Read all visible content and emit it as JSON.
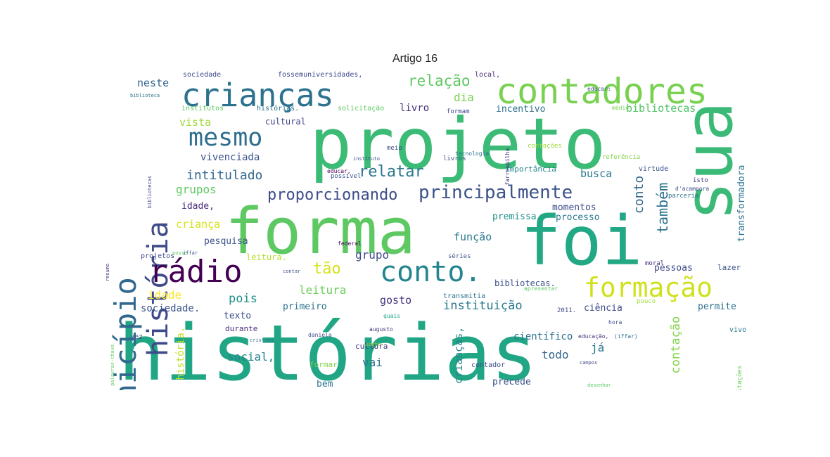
{
  "title": "Artigo 16",
  "words": [
    {
      "t": "histórias",
      "c": "#21a685"
    },
    {
      "t": "projeto",
      "c": "#3bbb75"
    },
    {
      "t": "forma",
      "c": "#5ec962"
    },
    {
      "t": "sua",
      "c": "#3aba76"
    },
    {
      "t": "foi",
      "c": "#22a884"
    },
    {
      "t": "crianças",
      "c": "#2c728e"
    },
    {
      "t": "contadores",
      "c": "#7ad151"
    },
    {
      "t": "município",
      "c": "#31688e"
    },
    {
      "t": "história",
      "c": "#3e4a89"
    },
    {
      "t": "mesmo",
      "c": "#2e6f8e"
    },
    {
      "t": "rádio",
      "c": "#440154"
    },
    {
      "t": "conto.",
      "c": "#25858e"
    },
    {
      "t": "formação",
      "c": "#d0e11c"
    },
    {
      "t": "principalmente",
      "c": "#3b528b"
    },
    {
      "t": "proporcionando",
      "c": "#3e4c8a"
    },
    {
      "t": "relação",
      "c": "#5ec962"
    },
    {
      "t": "relatar",
      "c": "#2a788e"
    },
    {
      "t": "intitulado",
      "c": "#31688e"
    },
    {
      "t": "neste",
      "c": "#33638d"
    },
    {
      "t": "dia",
      "c": "#7ad151"
    },
    {
      "t": "livro",
      "c": "#46327e"
    },
    {
      "t": "bibliotecas",
      "c": "#52c569"
    },
    {
      "t": "incentivo",
      "c": "#2d708e"
    },
    {
      "t": "vista",
      "c": "#a0da39"
    },
    {
      "t": "cultural",
      "c": "#414487"
    },
    {
      "t": "vivenciada",
      "c": "#3b528b"
    },
    {
      "t": "busca",
      "c": "#2a788e"
    },
    {
      "t": "grupos",
      "c": "#5ec962"
    },
    {
      "t": "idade,",
      "c": "#472c7a"
    },
    {
      "t": "criança",
      "c": "#d8e219"
    },
    {
      "t": "pesquisa",
      "c": "#3b528b"
    },
    {
      "t": "leitura.",
      "c": "#b5de2b"
    },
    {
      "t": "tão",
      "c": "#d8e219"
    },
    {
      "t": "grupo",
      "c": "#3e4a89"
    },
    {
      "t": "função",
      "c": "#2a788e"
    },
    {
      "t": "premissa",
      "c": "#21918c"
    },
    {
      "t": "momentos",
      "c": "#3e4c8a"
    },
    {
      "t": "processo",
      "c": "#2a788e"
    },
    {
      "t": "também",
      "c": "#2c728e"
    },
    {
      "t": "conto",
      "c": "#31688e"
    },
    {
      "t": "transformadora",
      "c": "#2c728e"
    },
    {
      "t": "pessoas",
      "c": "#3e4a89"
    },
    {
      "t": "idade",
      "c": "#fde725"
    },
    {
      "t": "pois",
      "c": "#21918c"
    },
    {
      "t": "leitura",
      "c": "#6ccd5a"
    },
    {
      "t": "sociedade.",
      "c": "#3b528b"
    },
    {
      "t": "primeiro",
      "c": "#2c728e"
    },
    {
      "t": "gosto",
      "c": "#46327e"
    },
    {
      "t": "instituição",
      "c": "#2a788e"
    },
    {
      "t": "bibliotecas.",
      "c": "#3b528b"
    },
    {
      "t": "ciência",
      "c": "#3e4a89"
    },
    {
      "t": "permite",
      "c": "#2d708e"
    },
    {
      "t": "contação",
      "c": "#84d44b"
    },
    {
      "t": "texto",
      "c": "#3b528b"
    },
    {
      "t": "durante",
      "c": "#472c7a"
    },
    {
      "t": "científico",
      "c": "#2c728e"
    },
    {
      "t": "todo",
      "c": "#33638d"
    },
    {
      "t": "já",
      "c": "#2a788e"
    },
    {
      "t": "social,",
      "c": "#25858e"
    },
    {
      "t": "vai",
      "c": "#2c728e"
    },
    {
      "t": "crianças,",
      "c": "#26828e"
    },
    {
      "t": "bem",
      "c": "#2a788e"
    },
    {
      "t": "precede",
      "c": "#3b528b"
    },
    {
      "t": "cultura",
      "c": "#46327e"
    },
    {
      "t": "formar",
      "c": "#84d44b"
    },
    {
      "t": "contador",
      "c": "#3e4a89"
    },
    {
      "t": "história.",
      "c": "#c2df23"
    },
    {
      "t": "lazer",
      "c": "#3b528b"
    },
    {
      "t": "sociedade",
      "c": "#3e4c8a"
    },
    {
      "t": "fossemuniversidades,",
      "c": "#3e4a89"
    },
    {
      "t": "local,",
      "c": "#472c7a"
    },
    {
      "t": "institutos",
      "c": "#5ec962"
    },
    {
      "t": "histórias.",
      "c": "#2c728e"
    },
    {
      "t": "solicitação",
      "c": "#5ec962"
    },
    {
      "t": "formam",
      "c": "#3e4a89"
    },
    {
      "t": "livros",
      "c": "#3b528b"
    },
    {
      "t": "meio",
      "c": "#3e4a89"
    },
    {
      "t": "possível",
      "c": "#3b528b"
    },
    {
      "t": "importância",
      "c": "#25858e"
    },
    {
      "t": "contações",
      "c": "#a0da39"
    },
    {
      "t": "referência",
      "c": "#84d44b"
    },
    {
      "t": "virtude",
      "c": "#3b528b"
    },
    {
      "t": "isto",
      "c": "#46327e"
    },
    {
      "t": "parceria",
      "c": "#2d708e"
    },
    {
      "t": "transmitia",
      "c": "#2c728e"
    },
    {
      "t": "séries",
      "c": "#3b528b"
    },
    {
      "t": "moral",
      "c": "#472c7a"
    },
    {
      "t": "projetos",
      "c": "#3e4c8a"
    },
    {
      "t": "pouco",
      "c": "#a0da39"
    },
    {
      "t": "2011.",
      "c": "#3e4a89"
    },
    {
      "t": "vez",
      "c": "#3b528b"
    },
    {
      "t": "vivo,",
      "c": "#2a788e"
    },
    {
      "t": "solicitações",
      "c": "#6ccd5a"
    },
    {
      "t": "educar,",
      "c": "#440154"
    },
    {
      "t": "federal",
      "c": "#440154"
    },
    {
      "t": "tecnologia",
      "c": "#2c728e"
    },
    {
      "t": "educação,",
      "c": "#46327e"
    },
    {
      "t": "(iffar)",
      "c": "#2d708e"
    },
    {
      "t": "quais",
      "c": "#21a685"
    },
    {
      "t": "daniela",
      "c": "#3b528b"
    },
    {
      "t": "augusto",
      "c": "#46327e"
    },
    {
      "t": "santo",
      "c": "#a0da39"
    },
    {
      "t": "cristina",
      "c": "#2c728e"
    },
    {
      "t": "campos",
      "c": "#3e4a89"
    },
    {
      "t": "desenhar",
      "c": "#5ec962"
    },
    {
      "t": "apresentar",
      "c": "#5ec962"
    },
    {
      "t": "hora",
      "c": "#3b528b"
    },
    {
      "t": "iffar",
      "c": "#3b528b"
    },
    {
      "t": "farroupilha",
      "c": "#46327e"
    },
    {
      "t": "d'acampora",
      "c": "#3e4a89"
    },
    {
      "t": "biblioteca",
      "c": "#2c728e"
    },
    {
      "t": "médio",
      "c": "#7ad151"
    },
    {
      "t": "educar:",
      "c": "#3b528b"
    },
    {
      "t": "instituto",
      "c": "#3e4a89"
    },
    {
      "t": "palavras-chave",
      "c": "#5ec962"
    },
    {
      "t": "resumo",
      "c": "#472c7a"
    },
    {
      "t": "bibliotecas",
      "c": "#3e4a89"
    },
    {
      "t": "posse",
      "c": "#5ec962"
    },
    {
      "t": "contar",
      "c": "#3b528b"
    }
  ]
}
